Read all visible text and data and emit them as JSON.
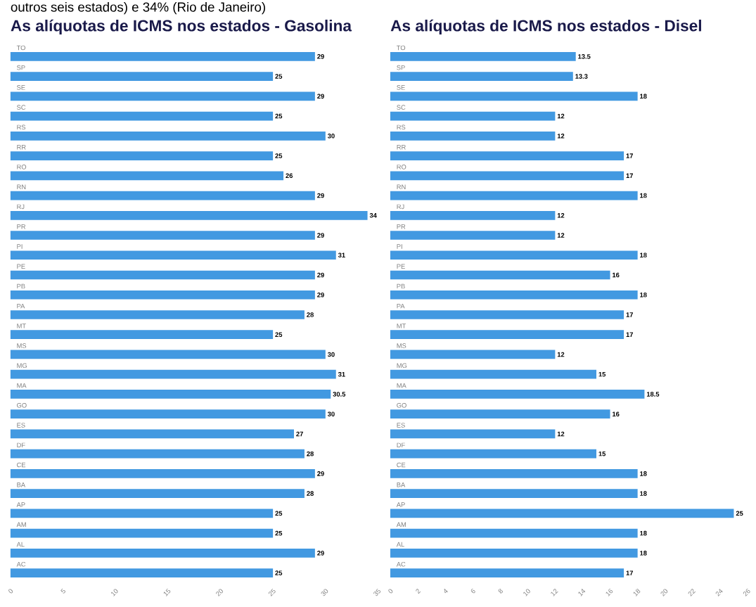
{
  "chart_data": [
    {
      "type": "bar",
      "orientation": "horizontal",
      "title": "As alíquotas de ICMS nos estados - Gasolina",
      "annotations": [
        "outros seis estados) e 34% (Rio de Janeiro)"
      ],
      "categories": [
        "TO",
        "SP",
        "SE",
        "SC",
        "RS",
        "RR",
        "RO",
        "RN",
        "RJ",
        "PR",
        "PI",
        "PE",
        "PB",
        "PA",
        "MT",
        "MS",
        "MG",
        "MA",
        "GO",
        "ES",
        "DF",
        "CE",
        "BA",
        "AP",
        "AM",
        "AL",
        "AC"
      ],
      "values": [
        29,
        25,
        29,
        25,
        30,
        25,
        26,
        29,
        34,
        29,
        31,
        29,
        29,
        28,
        25,
        30,
        31,
        30.5,
        30,
        27,
        28,
        29,
        28,
        25,
        25,
        29,
        25
      ],
      "value_labels": [
        "29",
        "25",
        "29",
        "25",
        "30",
        "25",
        "26",
        "29",
        "34",
        "29",
        "31",
        "29",
        "29",
        "28",
        "25",
        "30",
        "31",
        "30.5",
        "30",
        "27",
        "28",
        "29",
        "28",
        "25",
        "25",
        "29",
        "25"
      ],
      "color": "#4299e1",
      "xlim": [
        0,
        35
      ],
      "xticks": [
        0,
        5,
        10,
        15,
        20,
        25,
        30,
        35
      ]
    },
    {
      "type": "bar",
      "orientation": "horizontal",
      "title": "As alíquotas de ICMS nos estados - Disel",
      "categories": [
        "TO",
        "SP",
        "SE",
        "SC",
        "RS",
        "RR",
        "RO",
        "RN",
        "RJ",
        "PR",
        "PI",
        "PE",
        "PB",
        "PA",
        "MT",
        "MS",
        "MG",
        "MA",
        "GO",
        "ES",
        "DF",
        "CE",
        "BA",
        "AP",
        "AM",
        "AL",
        "AC"
      ],
      "values": [
        13.5,
        13.3,
        18,
        12,
        12,
        17,
        17,
        18,
        12,
        12,
        18,
        16,
        18,
        17,
        17,
        12,
        15,
        18.5,
        16,
        12,
        15,
        18,
        18,
        25,
        18,
        18,
        17
      ],
      "value_labels": [
        "13.5",
        "13.3",
        "18",
        "12",
        "12",
        "17",
        "17",
        "18",
        "12",
        "12",
        "18",
        "16",
        "18",
        "17",
        "17",
        "12",
        "15",
        "18.5",
        "16",
        "12",
        "15",
        "18",
        "18",
        "25",
        "18",
        "18",
        "17"
      ],
      "color": "#4299e1",
      "xlim": [
        0,
        26
      ],
      "xticks": [
        0,
        2,
        4,
        6,
        8,
        10,
        12,
        14,
        16,
        18,
        20,
        22,
        24,
        26
      ]
    }
  ]
}
